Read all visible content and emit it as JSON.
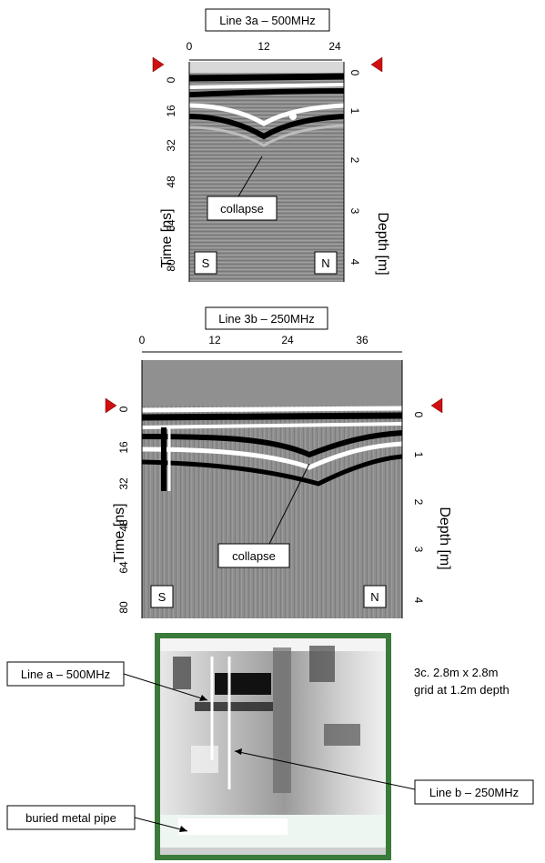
{
  "panel_a": {
    "title": "Line 3a – 500MHz",
    "x_ticks": [
      "0",
      "12",
      "24"
    ],
    "time_ticks": [
      "0",
      "16",
      "32",
      "48",
      "64",
      "80"
    ],
    "depth_ticks": [
      "0",
      "1",
      "2",
      "3",
      "4"
    ],
    "time_label": "Time [ns]",
    "depth_label": "Depth [m]",
    "annotation": "collapse",
    "left_end": "S",
    "right_end": "N"
  },
  "panel_b": {
    "title": "Line 3b – 250MHz",
    "x_ticks": [
      "0",
      "12",
      "24",
      "36"
    ],
    "time_ticks": [
      "0",
      "16",
      "32",
      "48",
      "64",
      "80"
    ],
    "depth_ticks": [
      "0",
      "1",
      "2",
      "3",
      "4"
    ],
    "time_label": "Time [ns]",
    "depth_label": "Depth [m]",
    "annotation": "collapse",
    "left_end": "S",
    "right_end": "N"
  },
  "panel_c": {
    "caption_line1": "3c. 2.8m x 2.8m",
    "caption_line2": "grid at 1.2m depth",
    "label_line_a": "Line a – 500MHz",
    "label_line_b": "Line b – 250MHz",
    "label_pipe": "buried metal pipe"
  },
  "colors": {
    "marker": "#d01010",
    "grid_border": "#3a7a3a",
    "radar_mid": "#8a8a8a"
  }
}
